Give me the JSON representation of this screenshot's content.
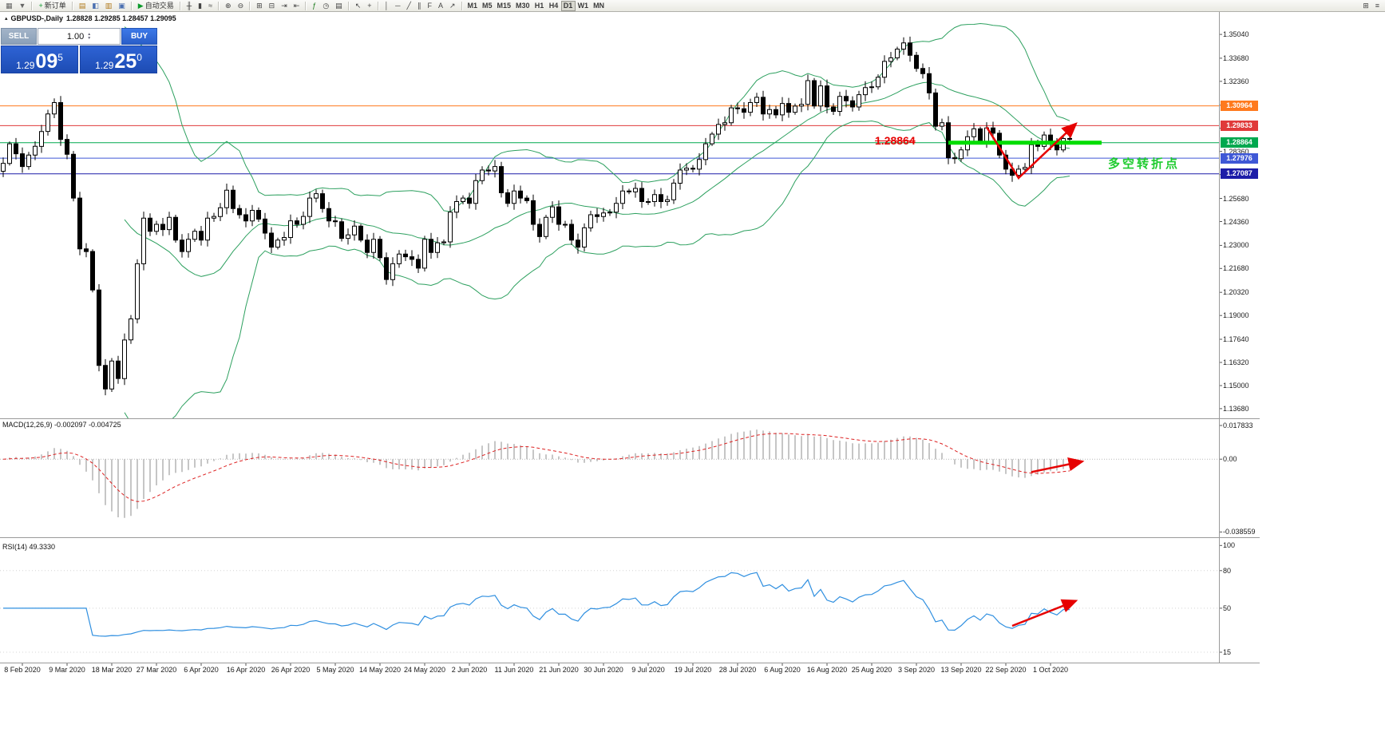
{
  "toolbar": {
    "groups": [
      {
        "name": "window-group",
        "items": [
          {
            "name": "new-chart-icon",
            "glyph": "▦",
            "color": "#666"
          },
          {
            "name": "profiles-icon",
            "glyph": "▼",
            "color": "#666"
          }
        ]
      },
      {
        "name": "order-group",
        "items": [
          {
            "name": "new-order-button",
            "label": "新订单",
            "glyph": "+",
            "color": "#0b9a2a"
          }
        ]
      },
      {
        "name": "panels-group",
        "items": [
          {
            "name": "market-watch-icon",
            "glyph": "▤",
            "color": "#b07818"
          },
          {
            "name": "data-window-icon",
            "glyph": "◧",
            "color": "#4a6fb0"
          },
          {
            "name": "navigator-icon",
            "glyph": "▥",
            "color": "#b07818"
          },
          {
            "name": "terminal-icon",
            "glyph": "▣",
            "color": "#4a6fb0"
          }
        ]
      },
      {
        "name": "autotrade-group",
        "items": [
          {
            "name": "autotrade-button",
            "label": "自动交易",
            "glyph": "▶",
            "color": "#0b9a2a"
          }
        ]
      },
      {
        "name": "chart-type-group",
        "items": [
          {
            "name": "bar-chart-icon",
            "glyph": "╫",
            "color": "#444"
          },
          {
            "name": "candlestick-icon",
            "glyph": "▮",
            "color": "#444"
          },
          {
            "name": "line-chart-icon",
            "glyph": "≈",
            "color": "#444"
          }
        ]
      },
      {
        "name": "zoom-group",
        "items": [
          {
            "name": "zoom-in-icon",
            "glyph": "⊕",
            "color": "#444"
          },
          {
            "name": "zoom-out-icon",
            "glyph": "⊖",
            "color": "#444"
          }
        ]
      },
      {
        "name": "arrange-group",
        "items": [
          {
            "name": "tile-windows-icon",
            "glyph": "⊞",
            "color": "#444"
          },
          {
            "name": "cascade-windows-icon",
            "glyph": "⊟",
            "color": "#444"
          },
          {
            "name": "auto-scroll-icon",
            "glyph": "⇥",
            "color": "#444"
          },
          {
            "name": "chart-shift-icon",
            "glyph": "⇤",
            "color": "#444"
          }
        ]
      },
      {
        "name": "tools-group",
        "items": [
          {
            "name": "indicators-icon",
            "glyph": "ƒ",
            "color": "#1a7a1a"
          },
          {
            "name": "periods-icon",
            "glyph": "◷",
            "color": "#444"
          },
          {
            "name": "templates-icon",
            "glyph": "▤",
            "color": "#444"
          }
        ]
      },
      {
        "name": "cursor-group",
        "items": [
          {
            "name": "cursor-icon",
            "glyph": "↖",
            "color": "#444"
          },
          {
            "name": "crosshair-icon",
            "glyph": "+",
            "color": "#444"
          }
        ]
      },
      {
        "name": "draw-group",
        "items": [
          {
            "name": "vertical-line-icon",
            "glyph": "│",
            "color": "#444"
          },
          {
            "name": "horizontal-line-icon",
            "glyph": "─",
            "color": "#444"
          },
          {
            "name": "trendline-icon",
            "glyph": "╱",
            "color": "#444"
          },
          {
            "name": "channel-icon",
            "glyph": "∥",
            "color": "#444"
          },
          {
            "name": "fibonacci-icon",
            "glyph": "F",
            "color": "#444"
          },
          {
            "name": "text-icon",
            "glyph": "A",
            "color": "#444"
          },
          {
            "name": "arrows-icon",
            "glyph": "↗",
            "color": "#444"
          }
        ]
      }
    ],
    "timeframes": [
      "M1",
      "M5",
      "M15",
      "M30",
      "H1",
      "H4",
      "D1",
      "W1",
      "MN"
    ],
    "active_timeframe": "D1",
    "right_icons": [
      {
        "name": "indicator-window-icon",
        "glyph": "⊞",
        "color": "#444"
      },
      {
        "name": "more-tools-icon",
        "glyph": "≡",
        "color": "#444"
      }
    ]
  },
  "chart_header": {
    "symbol": "GBPUSD-,Daily",
    "ohlc": "1.28828 1.29285 1.28457 1.29095"
  },
  "trade_panel": {
    "sell_label": "SELL",
    "buy_label": "BUY",
    "volume": "1.00",
    "sell_price": {
      "base": "1.29",
      "pips": "09",
      "point": "5"
    },
    "buy_price": {
      "base": "1.29",
      "pips": "25",
      "point": "0"
    }
  },
  "annotations": {
    "price_callout": {
      "text": "1.28864",
      "index": 137,
      "price": 1.2896
    },
    "turning_label": {
      "text": "多空转折点",
      "index": 173,
      "price": 1.2775
    }
  },
  "chart_data": [
    {
      "type": "candlestick",
      "title": "GBPUSD-,Daily",
      "symbol": "GBPUSD",
      "timeframe": "Daily",
      "last_ohlc": {
        "open": 1.28828,
        "high": 1.29285,
        "low": 1.28457,
        "close": 1.29095
      },
      "closes": [
        1.2768,
        1.288,
        1.2823,
        1.275,
        1.2815,
        1.2865,
        1.295,
        1.305,
        1.3115,
        1.2905,
        1.282,
        1.257,
        1.228,
        1.2265,
        1.2045,
        1.1615,
        1.148,
        1.164,
        1.154,
        1.176,
        1.188,
        1.2195,
        1.2455,
        1.238,
        1.242,
        1.239,
        1.246,
        1.233,
        1.2265,
        1.2335,
        1.238,
        1.233,
        1.2455,
        1.2465,
        1.2515,
        1.2615,
        1.251,
        1.2475,
        1.244,
        1.25,
        1.245,
        1.237,
        1.229,
        1.233,
        1.2345,
        1.244,
        1.242,
        1.2465,
        1.257,
        1.2595,
        1.251,
        1.244,
        1.2435,
        1.234,
        1.236,
        1.241,
        1.233,
        1.226,
        1.2335,
        1.223,
        1.2105,
        1.2195,
        1.225,
        1.2235,
        1.222,
        1.217,
        1.2335,
        1.226,
        1.2315,
        1.232,
        1.249,
        1.255,
        1.257,
        1.254,
        1.267,
        1.273,
        1.2725,
        1.275,
        1.26,
        1.254,
        1.261,
        1.257,
        1.2555,
        1.242,
        1.235,
        1.246,
        1.252,
        1.242,
        1.242,
        1.233,
        1.229,
        1.24,
        1.2475,
        1.2465,
        1.2485,
        1.249,
        1.254,
        1.261,
        1.2605,
        1.2625,
        1.255,
        1.255,
        1.259,
        1.255,
        1.256,
        1.2655,
        1.273,
        1.274,
        1.2735,
        1.279,
        1.288,
        1.2935,
        1.299,
        1.3,
        1.3085,
        1.308,
        1.306,
        1.3115,
        1.3145,
        1.305,
        1.3075,
        1.3045,
        1.311,
        1.306,
        1.3095,
        1.3105,
        1.324,
        1.3095,
        1.321,
        1.309,
        1.3065,
        1.315,
        1.3125,
        1.309,
        1.316,
        1.32,
        1.3205,
        1.326,
        1.335,
        1.337,
        1.342,
        1.3455,
        1.3385,
        1.331,
        1.328,
        1.317,
        1.298,
        1.3,
        1.28,
        1.2795,
        1.2845,
        1.292,
        1.2965,
        1.289,
        1.297,
        1.294,
        1.2815,
        1.2735,
        1.27,
        1.2735,
        1.2745,
        1.2875,
        1.2865,
        1.293,
        1.288,
        1.2845,
        1.291,
        1.29095
      ],
      "x_labels": [
        "8 Feb 2020",
        "9 Mar 2020",
        "18 Mar 2020",
        "27 Mar 2020",
        "6 Apr 2020",
        "16 Apr 2020",
        "26 Apr 2020",
        "5 May 2020",
        "14 May 2020",
        "24 May 2020",
        "2 Jun 2020",
        "11 Jun 2020",
        "21 Jun 2020",
        "30 Jun 2020",
        "9 Jul 2020",
        "19 Jul 2020",
        "28 Jul 2020",
        "6 Aug 2020",
        "16 Aug 2020",
        "25 Aug 2020",
        "3 Sep 2020",
        "13 Sep 2020",
        "22 Sep 2020",
        "1 Oct 2020"
      ],
      "x_label_start": 3,
      "x_label_step": 7,
      "ylim": [
        1.1313,
        1.3632
      ],
      "y_ticks": [
        1.3504,
        1.3368,
        1.3236,
        1.31,
        1.2968,
        1.2836,
        1.2704,
        1.2568,
        1.2436,
        1.23,
        1.2168,
        1.2032,
        1.19,
        1.1764,
        1.1632,
        1.15,
        1.1368
      ],
      "bollinger": {
        "period": 20,
        "deviation": 2,
        "color": "#2da05f"
      },
      "levels": [
        {
          "price": 1.30964,
          "label": "1.30964",
          "color": "#ff7a1e"
        },
        {
          "price": 1.29833,
          "label": "1.29833",
          "color": "#e03a3a"
        },
        {
          "price": 1.28864,
          "label": "1.28864",
          "color": "#00a84f"
        },
        {
          "price": 1.27976,
          "label": "1.27976",
          "color": "#3f58d6"
        },
        {
          "price": 1.27087,
          "label": "1.27087",
          "color": "#1d1da8"
        }
      ],
      "support_segment": {
        "price": 1.28864,
        "from_index": 148,
        "to_index": 172,
        "color": "#00dd00"
      },
      "trend_arrow": {
        "color": "#e60000",
        "points": [
          [
            154,
            1.2975
          ],
          [
            159,
            1.2685
          ],
          [
            168,
            1.2995
          ]
        ]
      }
    },
    {
      "type": "macd",
      "title": "MACD(12,26,9) -0.002097 -0.004725",
      "params": {
        "fast": 12,
        "slow": 26,
        "signal": 9
      },
      "current": {
        "macd": -0.002097,
        "signal": -0.004725
      },
      "ylim": [
        -0.0405,
        0.0208
      ],
      "y_ticks": [
        {
          "v": 0.017833,
          "label": "0.017833"
        },
        {
          "v": 0,
          "label": "0.00"
        },
        {
          "v": -0.038559,
          "label": "-0.038559"
        }
      ],
      "histogram_color": "#a8a8a8",
      "signal_color": "#dd2222",
      "arrow": {
        "color": "#e60000",
        "points": [
          [
            161,
            -0.0068
          ],
          [
            169,
            -0.0012
          ]
        ]
      }
    },
    {
      "type": "rsi",
      "title": "RSI(14) 49.3330",
      "period": 14,
      "current": 49.333,
      "ylim": [
        8,
        104
      ],
      "y_ticks": [
        {
          "v": 100,
          "label": "100"
        },
        {
          "v": 80,
          "label": "80"
        },
        {
          "v": 50,
          "label": "50"
        },
        {
          "v": 15,
          "label": "15"
        }
      ],
      "line_color": "#2f8fe0",
      "arrow": {
        "color": "#e60000",
        "points": [
          [
            158,
            36
          ],
          [
            168,
            56
          ]
        ]
      }
    }
  ]
}
